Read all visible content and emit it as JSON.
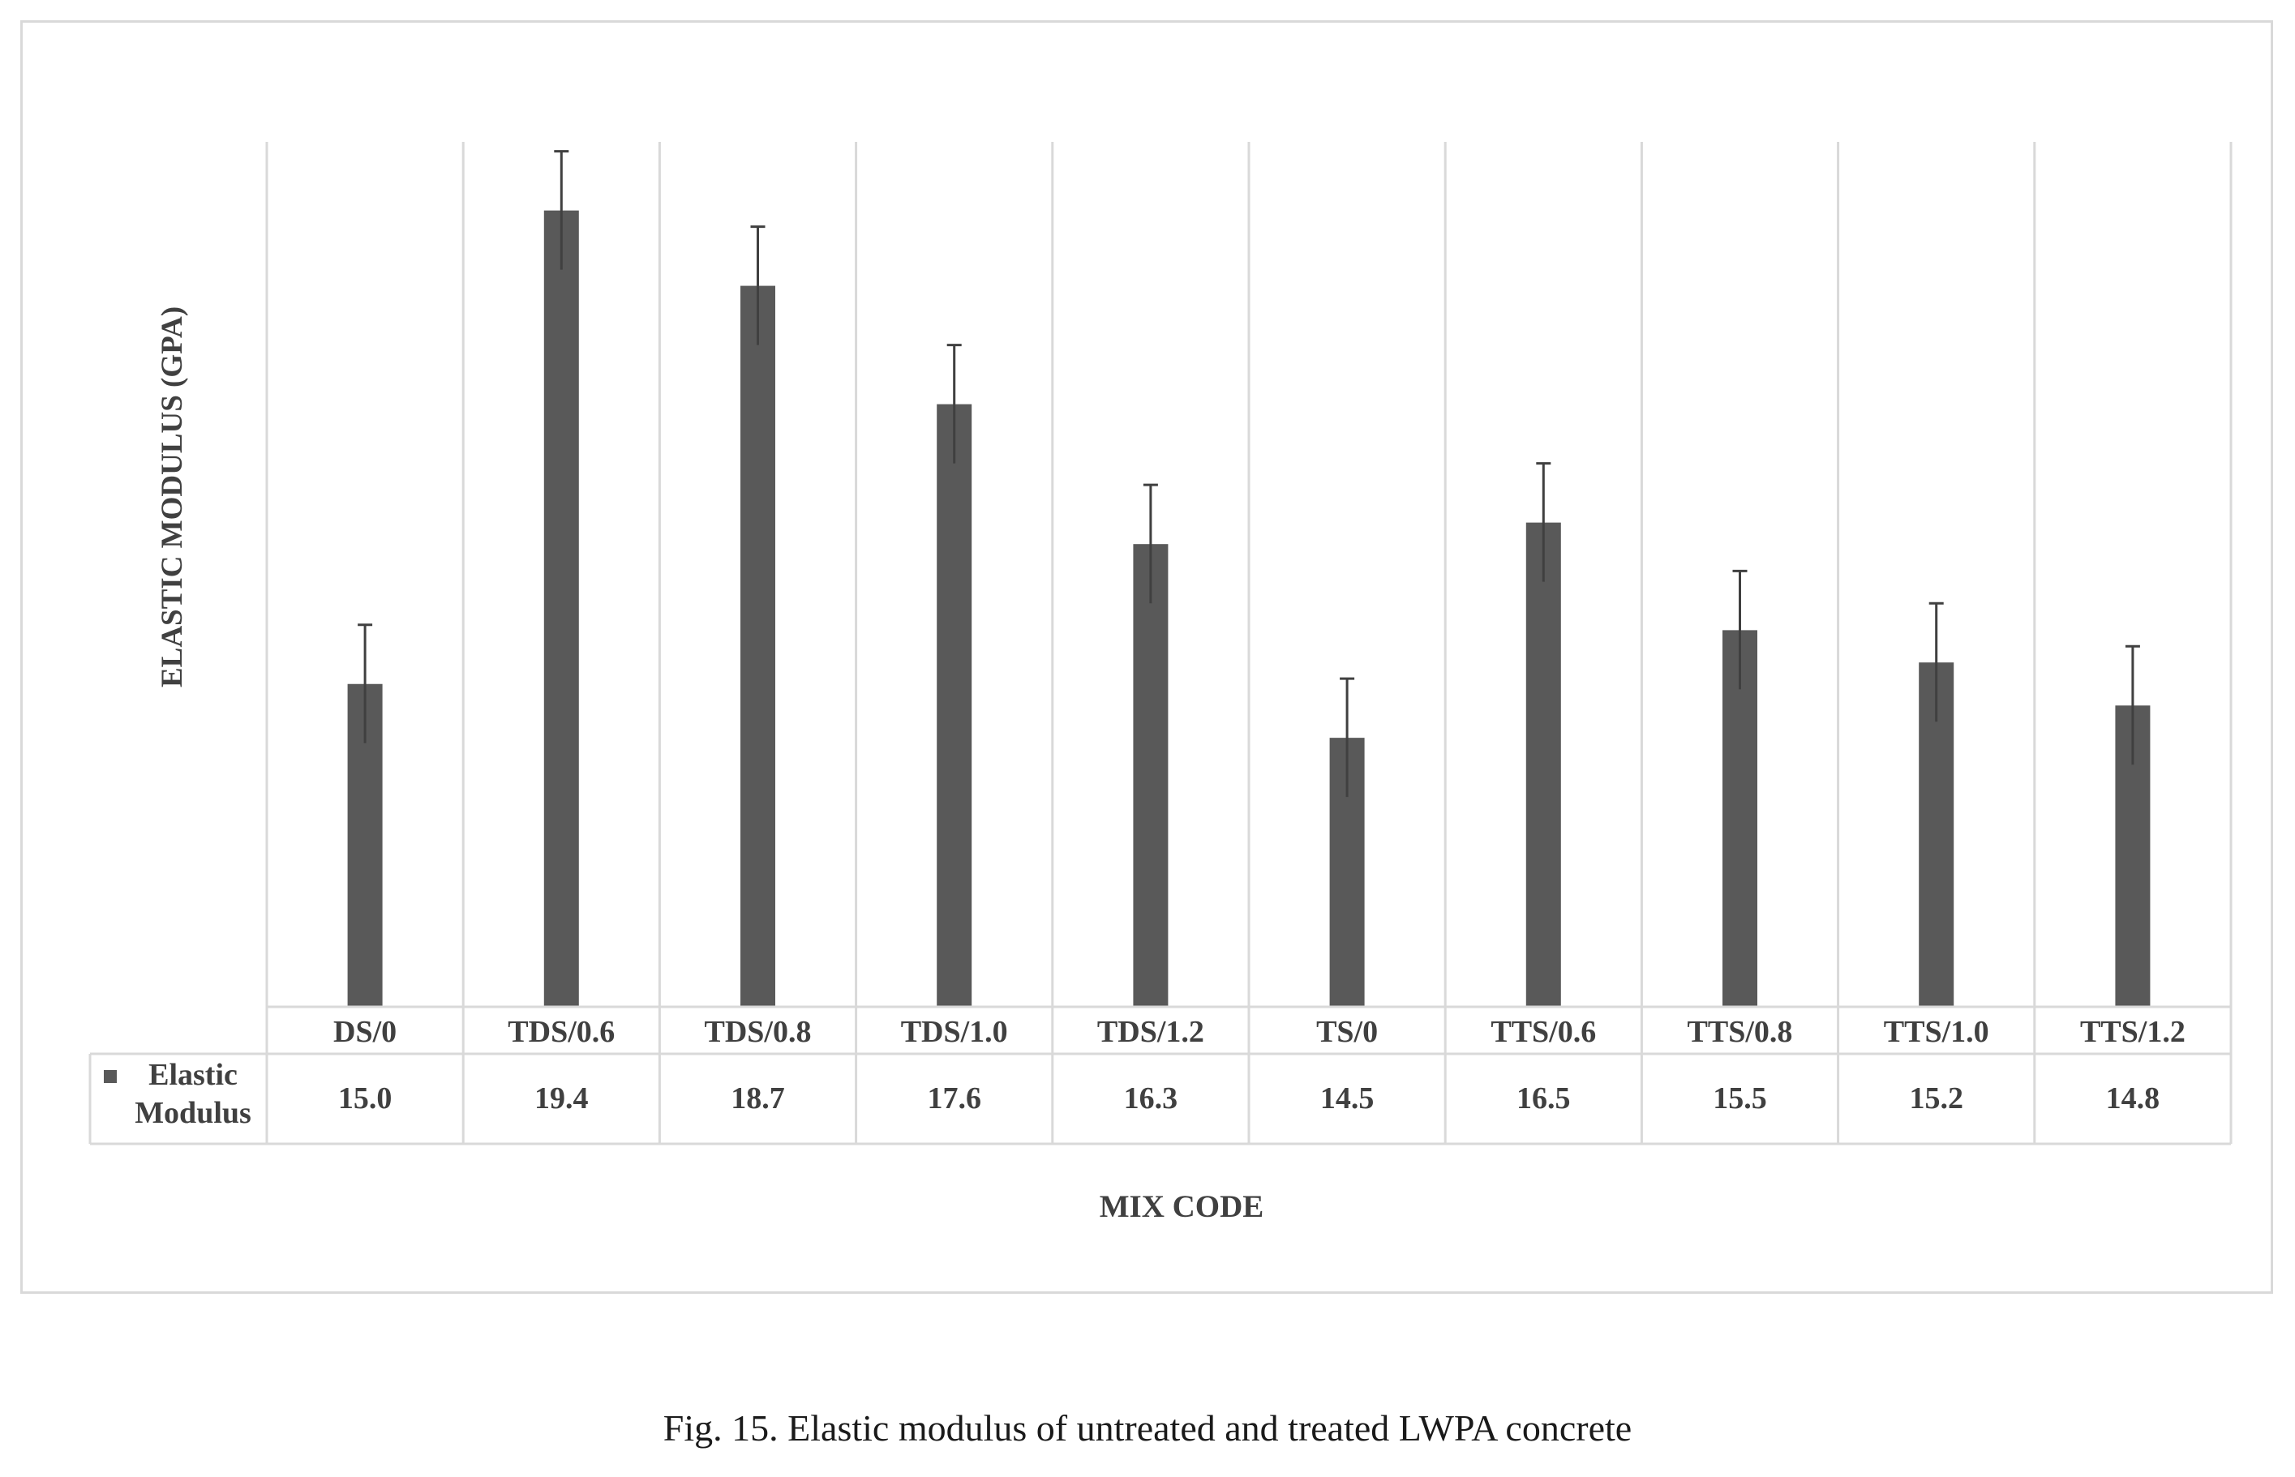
{
  "chart_data": {
    "type": "bar",
    "title": "",
    "xlabel": "MIX CODE",
    "ylabel": "ELASTIC MODULUS (GPA)",
    "ylim": [
      12.0,
      20.0
    ],
    "grid": "vertical category dividers",
    "legend": "data-table row header",
    "categories": [
      "DS/0",
      "TDS/0.6",
      "TDS/0.8",
      "TDS/1.0",
      "TDS/1.2",
      "TS/0",
      "TTS/0.6",
      "TTS/0.8",
      "TTS/1.0",
      "TTS/1.2"
    ],
    "series": [
      {
        "name": "Elastic Modulus",
        "color": "#595959",
        "values": [
          15.0,
          19.4,
          18.7,
          17.6,
          16.3,
          14.5,
          16.5,
          15.5,
          15.2,
          14.8
        ],
        "error": [
          0.55,
          0.55,
          0.55,
          0.55,
          0.55,
          0.55,
          0.55,
          0.55,
          0.55,
          0.55
        ]
      }
    ],
    "data_table": true
  },
  "legend": {
    "line1": "Elastic",
    "line2": "Modulus"
  },
  "caption": "Fig. 15. Elastic modulus of untreated and treated LWPA concrete"
}
